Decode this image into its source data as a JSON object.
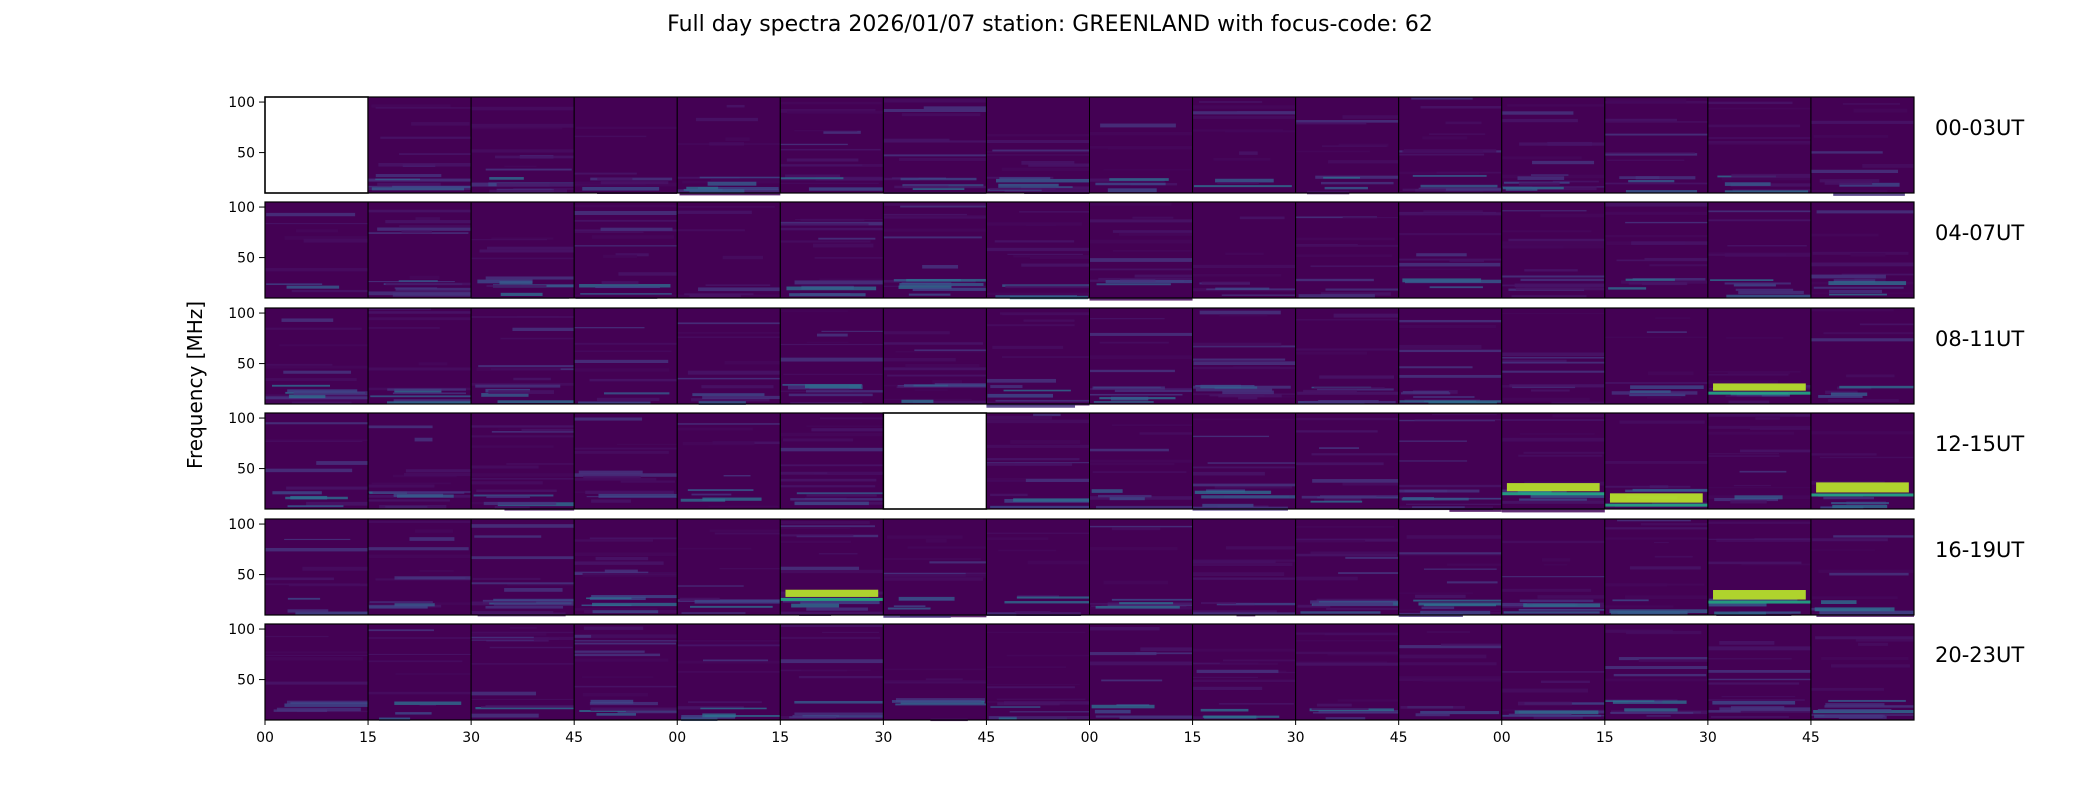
{
  "chart_data": {
    "type": "heatmap",
    "title": "Full day spectra 2026/01/07 station: GREENLAND with focus-code: 62",
    "ylabel": "Frequency [MHz]",
    "xlabel": "",
    "ylim": [
      10,
      105
    ],
    "yticks": [
      100,
      50
    ],
    "xtick_labels": [
      "00",
      "15",
      "30",
      "45",
      "00",
      "15",
      "30",
      "45",
      "00",
      "15",
      "30",
      "45",
      "00",
      "15",
      "30",
      "45"
    ],
    "panels_per_row": 16,
    "panel_minutes": 15,
    "colormap": "viridis",
    "colors": {
      "background": "#440154",
      "low": "#46085c",
      "mid": "#2a788e",
      "high": "#22a884",
      "peak": "#b5de2b"
    },
    "rows": [
      {
        "label": "00-03UT",
        "missing": [
          0
        ],
        "bright": []
      },
      {
        "label": "04-07UT",
        "missing": [],
        "bright": []
      },
      {
        "label": "08-11UT",
        "missing": [],
        "bright": [
          14
        ]
      },
      {
        "label": "12-15UT",
        "missing": [
          6
        ],
        "bright": [
          12,
          13,
          15
        ]
      },
      {
        "label": "16-19UT",
        "missing": [],
        "bright": [
          5,
          14
        ]
      },
      {
        "label": "20-23UT",
        "missing": [],
        "bright": []
      }
    ]
  }
}
